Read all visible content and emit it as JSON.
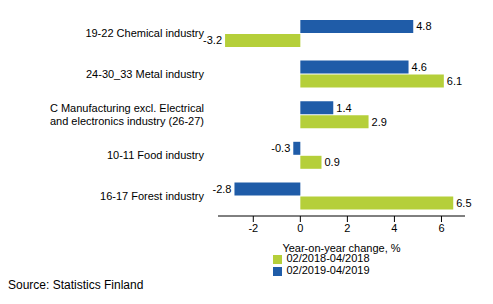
{
  "chart_data": {
    "type": "bar",
    "orientation": "horizontal",
    "x_label": "Year-on-year change, %",
    "source": "Source: Statistics Finland",
    "categories": [
      "19-22 Chemical industry",
      "24-30_33 Metal industry",
      "C Manufacturing excl. Electrical and electronics industry (26-27)",
      "10-11 Food industry",
      "16-17 Forest industry"
    ],
    "series": [
      {
        "name": "02/2019-04/2019",
        "color": "#1f5ca8",
        "values": [
          4.8,
          4.6,
          1.4,
          -0.3,
          -2.8
        ]
      },
      {
        "name": "02/2018-04/2018",
        "color": "#b5cf3a",
        "values": [
          -3.2,
          6.1,
          2.9,
          0.9,
          6.5
        ]
      }
    ],
    "xlim": [
      -3.5,
      7
    ],
    "xticks": [
      -2,
      0,
      2,
      4,
      6
    ],
    "data_labels": true,
    "grid": false,
    "legend": "bottom"
  }
}
